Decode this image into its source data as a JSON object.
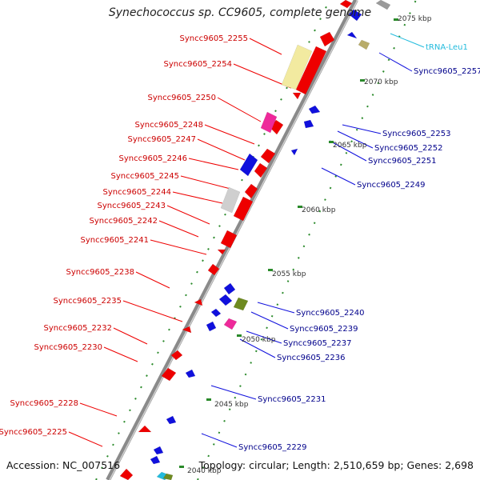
{
  "title": "Synechococcus sp. CC9605, complete genome",
  "footer": {
    "accession": "Accession: NC_007516",
    "summary": "Topology: circular; Length: 2,510,659 bp; Genes: 2,698"
  },
  "colors": {
    "forward_gene": "#ee0000",
    "reverse_gene": "#1010dd",
    "forward_label": "#cc0000",
    "reverse_label": "#00008b",
    "trna_label": "#22bbdd",
    "backbone": "#8a8a8a",
    "tick": "#2a8a2a"
  },
  "scale_ticks": [
    {
      "label": "2075 kbp"
    },
    {
      "label": "2070 kbp"
    },
    {
      "label": "2065 kbp"
    },
    {
      "label": "2060 kbp"
    },
    {
      "label": "2055 kbp"
    },
    {
      "label": "2050 kbp"
    },
    {
      "label": "2045 kbp"
    },
    {
      "label": "2040 kbp"
    }
  ],
  "forward_labels": [
    "Syncc9605_2255",
    "Syncc9605_2254",
    "Syncc9605_2250",
    "Syncc9605_2248",
    "Syncc9605_2247",
    "Syncc9605_2246",
    "Syncc9605_2245",
    "Syncc9605_2244",
    "Syncc9605_2243",
    "Syncc9605_2242",
    "Syncc9605_2241",
    "Syncc9605_2238",
    "Syncc9605_2235",
    "Syncc9605_2232",
    "Syncc9605_2230",
    "Syncc9605_2228",
    "Syncc9605_2225"
  ],
  "reverse_labels": [
    "tRNA-Leu1",
    "Syncc9605_2257",
    "Syncc9605_2253",
    "Syncc9605_2252",
    "Syncc9605_2251",
    "Syncc9605_2249",
    "Syncc9605_2240",
    "Syncc9605_2239",
    "Syncc9605_2237",
    "Syncc9605_2236",
    "Syncc9605_2231",
    "Syncc9605_2229"
  ]
}
